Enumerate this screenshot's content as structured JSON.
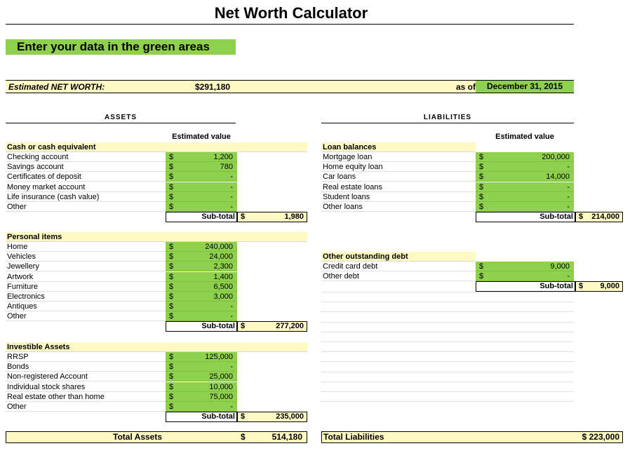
{
  "title": "Net Worth Calculator",
  "banner": "Enter your data in the green areas",
  "net_worth": {
    "label": "Estimated NET WORTH:",
    "value": "$291,180",
    "as_of_label": "as of",
    "date": "December 31, 2015"
  },
  "assets": {
    "header": "ASSETS",
    "col_header": "Estimated value",
    "cash": {
      "title": "Cash or cash equivalent",
      "items": [
        {
          "label": "Checking account",
          "cur": "$",
          "value": "1,200"
        },
        {
          "label": "Savings account",
          "cur": "$",
          "value": "780"
        },
        {
          "label": "Certificates of deposit",
          "cur": "$",
          "value": "-"
        },
        {
          "label": "Money market account",
          "cur": "$",
          "value": "-"
        },
        {
          "label": "Life insurance (cash value)",
          "cur": "$",
          "value": "-"
        },
        {
          "label": "Other",
          "cur": "$",
          "value": "-"
        }
      ],
      "subtotal_label": "Sub-total",
      "subtotal_cur": "$",
      "subtotal": "1,980"
    },
    "personal": {
      "title": "Personal items",
      "items": [
        {
          "label": "Home",
          "cur": "$",
          "value": "240,000"
        },
        {
          "label": "Vehicles",
          "cur": "$",
          "value": "24,000"
        },
        {
          "label": "Jewellery",
          "cur": "$",
          "value": "2,300"
        },
        {
          "label": "Artwork",
          "cur": "$",
          "value": "1,400"
        },
        {
          "label": "Furniture",
          "cur": "$",
          "value": "6,500"
        },
        {
          "label": "Electronics",
          "cur": "$",
          "value": "3,000"
        },
        {
          "label": "Antiques",
          "cur": "$",
          "value": "-"
        },
        {
          "label": "Other",
          "cur": "$",
          "value": "-"
        }
      ],
      "subtotal_label": "Sub-total",
      "subtotal_cur": "$",
      "subtotal": "277,200"
    },
    "investible": {
      "title": "Investible Assets",
      "items": [
        {
          "label": "RRSP",
          "cur": "$",
          "value": "125,000"
        },
        {
          "label": "Bonds",
          "cur": "$",
          "value": "-"
        },
        {
          "label": "Non-registered Account",
          "cur": "$",
          "value": "25,000"
        },
        {
          "label": "Individual stock shares",
          "cur": "$",
          "value": "10,000"
        },
        {
          "label": "Real estate other than home",
          "cur": "$",
          "value": "75,000"
        },
        {
          "label": "Other",
          "cur": "$",
          "value": "-"
        }
      ],
      "subtotal_label": "Sub-total",
      "subtotal_cur": "$",
      "subtotal": "235,000"
    },
    "total_label": "Total Assets",
    "total_cur": "$",
    "total": "514,180"
  },
  "liabilities": {
    "header": "LIABILITIES",
    "col_header": "Estimated value",
    "loans": {
      "title": "Loan balances",
      "items": [
        {
          "label": "Mortgage loan",
          "cur": "$",
          "value": "200,000"
        },
        {
          "label": "Home equity loan",
          "cur": "$",
          "value": "-"
        },
        {
          "label": "Car loans",
          "cur": "$",
          "value": "14,000"
        },
        {
          "label": "Real estate loans",
          "cur": "$",
          "value": "-"
        },
        {
          "label": "Student loans",
          "cur": "$",
          "value": "-"
        },
        {
          "label": "Other loans",
          "cur": "$",
          "value": "-"
        }
      ],
      "subtotal_label": "Sub-total",
      "subtotal_cur": "$",
      "subtotal": "214,000"
    },
    "debt": {
      "title": "Other outstanding debt",
      "items": [
        {
          "label": "Credit card debt",
          "cur": "$",
          "value": "9,000"
        },
        {
          "label": "Other debt",
          "cur": "$",
          "value": "-"
        }
      ],
      "subtotal_label": "Sub-total",
      "subtotal_cur": "$",
      "subtotal": "9,000"
    },
    "total_label": "Total Liabilities",
    "total": "$ 223,000"
  },
  "colors": {
    "green": "#8fd14f",
    "yellow": "#fff9c4"
  }
}
